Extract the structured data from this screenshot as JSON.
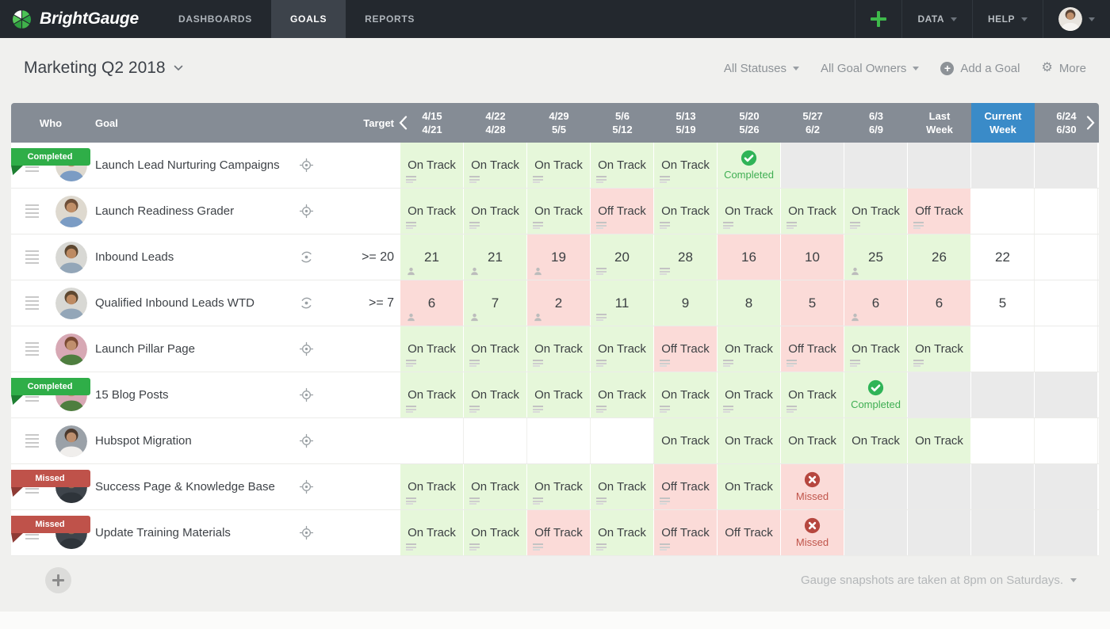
{
  "nav": {
    "brand": "BrightGauge",
    "tabs": [
      {
        "label": "DASHBOARDS",
        "active": false
      },
      {
        "label": "GOALS",
        "active": true
      },
      {
        "label": "REPORTS",
        "active": false
      }
    ],
    "data_menu": "DATA",
    "help_menu": "HELP"
  },
  "toolbar": {
    "title": "Marketing Q2 2018",
    "statuses_filter": "All Statuses",
    "owners_filter": "All Goal Owners",
    "add_goal_label": "Add a Goal",
    "more_label": "More"
  },
  "table": {
    "who_header": "Who",
    "goal_header": "Goal",
    "target_header": "Target",
    "columns": [
      {
        "top": "4/15",
        "bottom": "4/21",
        "current": false
      },
      {
        "top": "4/22",
        "bottom": "4/28",
        "current": false
      },
      {
        "top": "4/29",
        "bottom": "5/5",
        "current": false
      },
      {
        "top": "5/6",
        "bottom": "5/12",
        "current": false
      },
      {
        "top": "5/13",
        "bottom": "5/19",
        "current": false
      },
      {
        "top": "5/20",
        "bottom": "5/26",
        "current": false
      },
      {
        "top": "5/27",
        "bottom": "6/2",
        "current": false
      },
      {
        "top": "6/3",
        "bottom": "6/9",
        "current": false
      },
      {
        "top": "Last",
        "bottom": "Week",
        "current": false
      },
      {
        "top": "Current",
        "bottom": "Week",
        "current": true
      },
      {
        "top": "6/24",
        "bottom": "6/30",
        "current": false
      }
    ],
    "rows": [
      {
        "goal": "Launch Lead Nurturing Campaigns",
        "badge": {
          "text": "Completed",
          "type": "completed"
        },
        "avatar": "man-blue",
        "target_icon": "crosshair",
        "target": "",
        "cells": [
          {
            "type": "status",
            "text": "On Track",
            "state": "good",
            "icon": "note"
          },
          {
            "type": "status",
            "text": "On Track",
            "state": "good",
            "icon": "note"
          },
          {
            "type": "status",
            "text": "On Track",
            "state": "good",
            "icon": "note"
          },
          {
            "type": "status",
            "text": "On Track",
            "state": "good",
            "icon": "note"
          },
          {
            "type": "status",
            "text": "On Track",
            "state": "good",
            "icon": "note"
          },
          {
            "type": "completed",
            "text": "Completed"
          },
          {
            "type": "disabled"
          },
          {
            "type": "disabled"
          },
          {
            "type": "disabled"
          },
          {
            "type": "disabled"
          },
          {
            "type": "disabled"
          }
        ]
      },
      {
        "goal": "Launch Readiness Grader",
        "badge": null,
        "avatar": "man-blue",
        "target_icon": "crosshair",
        "target": "",
        "cells": [
          {
            "type": "status",
            "text": "On Track",
            "state": "good",
            "icon": "note"
          },
          {
            "type": "status",
            "text": "On Track",
            "state": "good",
            "icon": "note"
          },
          {
            "type": "status",
            "text": "On Track",
            "state": "good",
            "icon": "note"
          },
          {
            "type": "status",
            "text": "Off Track",
            "state": "bad",
            "icon": "note"
          },
          {
            "type": "status",
            "text": "On Track",
            "state": "good",
            "icon": "note"
          },
          {
            "type": "status",
            "text": "On Track",
            "state": "good",
            "icon": "note"
          },
          {
            "type": "status",
            "text": "On Track",
            "state": "good",
            "icon": "note"
          },
          {
            "type": "status",
            "text": "On Track",
            "state": "good",
            "icon": "note"
          },
          {
            "type": "status",
            "text": "Off Track",
            "state": "bad",
            "icon": "note"
          },
          {
            "type": "empty"
          },
          {
            "type": "empty"
          }
        ]
      },
      {
        "goal": "Inbound Leads",
        "badge": null,
        "avatar": "man-gray",
        "target_icon": "gauge",
        "target": ">= 20",
        "cells": [
          {
            "type": "number",
            "text": "21",
            "state": "good",
            "icon": "person"
          },
          {
            "type": "number",
            "text": "21",
            "state": "good",
            "icon": "person"
          },
          {
            "type": "number",
            "text": "19",
            "state": "bad",
            "icon": "person"
          },
          {
            "type": "number",
            "text": "20",
            "state": "good",
            "icon": "note"
          },
          {
            "type": "number",
            "text": "28",
            "state": "good",
            "icon": "note"
          },
          {
            "type": "number",
            "text": "16",
            "state": "bad"
          },
          {
            "type": "number",
            "text": "10",
            "state": "bad"
          },
          {
            "type": "number",
            "text": "25",
            "state": "good",
            "icon": "person"
          },
          {
            "type": "number",
            "text": "26",
            "state": "good"
          },
          {
            "type": "number",
            "text": "22",
            "state": "plain"
          },
          {
            "type": "empty"
          }
        ]
      },
      {
        "goal": "Qualified Inbound Leads WTD",
        "badge": null,
        "avatar": "man-gray",
        "target_icon": "gauge",
        "target": ">= 7",
        "cells": [
          {
            "type": "number",
            "text": "6",
            "state": "bad",
            "icon": "person"
          },
          {
            "type": "number",
            "text": "7",
            "state": "good",
            "icon": "person"
          },
          {
            "type": "number",
            "text": "2",
            "state": "bad",
            "icon": "person"
          },
          {
            "type": "number",
            "text": "11",
            "state": "good",
            "icon": "note"
          },
          {
            "type": "number",
            "text": "9",
            "state": "good"
          },
          {
            "type": "number",
            "text": "8",
            "state": "good"
          },
          {
            "type": "number",
            "text": "5",
            "state": "bad"
          },
          {
            "type": "number",
            "text": "6",
            "state": "bad",
            "icon": "person"
          },
          {
            "type": "number",
            "text": "6",
            "state": "bad"
          },
          {
            "type": "number",
            "text": "5",
            "state": "plain"
          },
          {
            "type": "empty"
          }
        ]
      },
      {
        "goal": "Launch Pillar Page",
        "badge": null,
        "avatar": "woman-flowers",
        "target_icon": "crosshair",
        "target": "",
        "cells": [
          {
            "type": "status",
            "text": "On Track",
            "state": "good",
            "icon": "note"
          },
          {
            "type": "status",
            "text": "On Track",
            "state": "good",
            "icon": "note"
          },
          {
            "type": "status",
            "text": "On Track",
            "state": "good",
            "icon": "note"
          },
          {
            "type": "status",
            "text": "On Track",
            "state": "good",
            "icon": "note"
          },
          {
            "type": "status",
            "text": "Off Track",
            "state": "bad",
            "icon": "note"
          },
          {
            "type": "status",
            "text": "On Track",
            "state": "good",
            "icon": "note"
          },
          {
            "type": "status",
            "text": "Off Track",
            "state": "bad",
            "icon": "note"
          },
          {
            "type": "status",
            "text": "On Track",
            "state": "good",
            "icon": "note"
          },
          {
            "type": "status",
            "text": "On Track",
            "state": "good",
            "icon": "note"
          },
          {
            "type": "empty"
          },
          {
            "type": "empty"
          }
        ]
      },
      {
        "goal": "15 Blog Posts",
        "badge": {
          "text": "Completed",
          "type": "completed"
        },
        "avatar": "woman-flowers",
        "target_icon": "crosshair",
        "target": "",
        "cells": [
          {
            "type": "status",
            "text": "On Track",
            "state": "good",
            "icon": "note"
          },
          {
            "type": "status",
            "text": "On Track",
            "state": "good",
            "icon": "note"
          },
          {
            "type": "status",
            "text": "On Track",
            "state": "good",
            "icon": "note"
          },
          {
            "type": "status",
            "text": "On Track",
            "state": "good",
            "icon": "note"
          },
          {
            "type": "status",
            "text": "On Track",
            "state": "good",
            "icon": "note"
          },
          {
            "type": "status",
            "text": "On Track",
            "state": "good",
            "icon": "note"
          },
          {
            "type": "status",
            "text": "On Track",
            "state": "good",
            "icon": "note"
          },
          {
            "type": "completed",
            "text": "Completed"
          },
          {
            "type": "disabled"
          },
          {
            "type": "disabled"
          },
          {
            "type": "disabled"
          }
        ]
      },
      {
        "goal": "Hubspot Migration",
        "badge": null,
        "avatar": "woman-white",
        "target_icon": "crosshair",
        "target": "",
        "cells": [
          {
            "type": "empty"
          },
          {
            "type": "empty"
          },
          {
            "type": "empty"
          },
          {
            "type": "empty"
          },
          {
            "type": "status",
            "text": "On Track",
            "state": "good"
          },
          {
            "type": "status",
            "text": "On Track",
            "state": "good"
          },
          {
            "type": "status",
            "text": "On Track",
            "state": "good"
          },
          {
            "type": "status",
            "text": "On Track",
            "state": "good"
          },
          {
            "type": "status",
            "text": "On Track",
            "state": "good"
          },
          {
            "type": "empty"
          },
          {
            "type": "empty"
          }
        ]
      },
      {
        "goal": "Success Page & Knowledge Base",
        "badge": {
          "text": "Missed",
          "type": "missed"
        },
        "avatar": "person-dark",
        "target_icon": "crosshair",
        "target": "",
        "cells": [
          {
            "type": "status",
            "text": "On Track",
            "state": "good",
            "icon": "note"
          },
          {
            "type": "status",
            "text": "On Track",
            "state": "good",
            "icon": "note"
          },
          {
            "type": "status",
            "text": "On Track",
            "state": "good",
            "icon": "note"
          },
          {
            "type": "status",
            "text": "On Track",
            "state": "good",
            "icon": "note"
          },
          {
            "type": "status",
            "text": "Off Track",
            "state": "bad",
            "icon": "note"
          },
          {
            "type": "status",
            "text": "On Track",
            "state": "good"
          },
          {
            "type": "missed",
            "text": "Missed"
          },
          {
            "type": "disabled"
          },
          {
            "type": "disabled"
          },
          {
            "type": "disabled"
          },
          {
            "type": "disabled"
          }
        ]
      },
      {
        "goal": "Update Training Materials",
        "badge": {
          "text": "Missed",
          "type": "missed"
        },
        "avatar": "person-dark",
        "target_icon": "crosshair",
        "target": "",
        "cells": [
          {
            "type": "status",
            "text": "On Track",
            "state": "good",
            "icon": "note"
          },
          {
            "type": "status",
            "text": "On Track",
            "state": "good",
            "icon": "note"
          },
          {
            "type": "status",
            "text": "Off Track",
            "state": "bad",
            "icon": "note"
          },
          {
            "type": "status",
            "text": "On Track",
            "state": "good",
            "icon": "note"
          },
          {
            "type": "status",
            "text": "Off Track",
            "state": "bad",
            "icon": "note"
          },
          {
            "type": "status",
            "text": "Off Track",
            "state": "bad"
          },
          {
            "type": "missed",
            "text": "Missed"
          },
          {
            "type": "disabled"
          },
          {
            "type": "disabled"
          },
          {
            "type": "disabled"
          },
          {
            "type": "disabled"
          }
        ]
      }
    ]
  },
  "footer": {
    "snapshot_note": "Gauge snapshots are taken at 8pm on Saturdays."
  },
  "colors": {
    "brand_green": "#3eb94b",
    "nav_bg": "#23282e",
    "header_gray": "#858c95",
    "current_week_blue": "#3a8bc8",
    "cell_good": "#e6f7da",
    "cell_bad": "#fbdbd8",
    "cell_disabled": "#eaeaea",
    "completed_green": "#2fae48",
    "missed_red": "#bf524a"
  }
}
